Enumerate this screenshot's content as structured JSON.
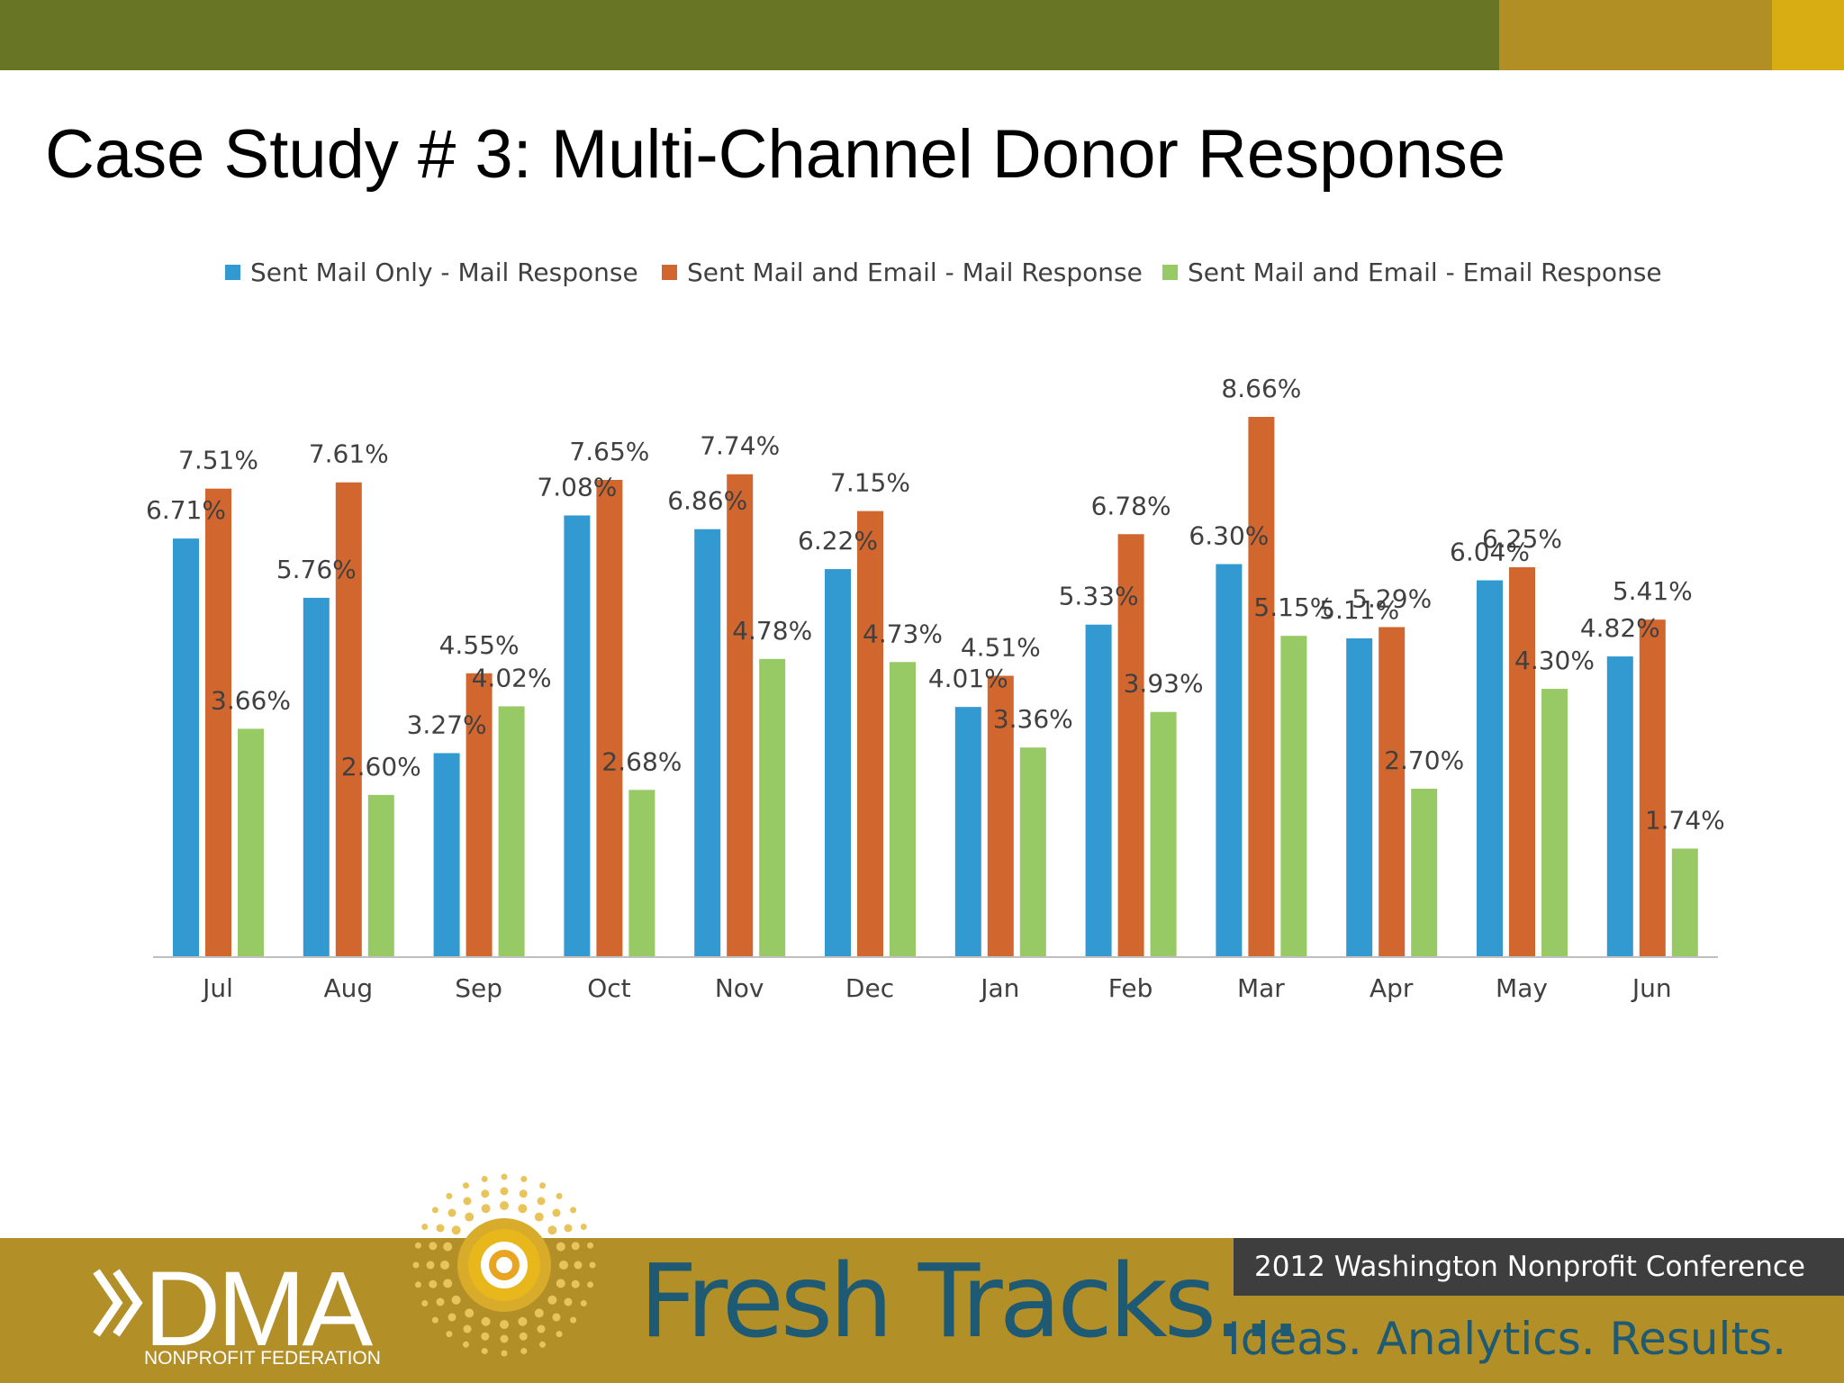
{
  "slide": {
    "title": "Case Study # 3: Multi-Channel Donor Response"
  },
  "colors": {
    "topbar_green": "#677524",
    "topbar_gold": "#b28f25",
    "topbar_yellow": "#d8ac13",
    "footer_gold": "#b38f28",
    "footer_dark": "#3e3e3e",
    "brand_teal": "#1e5a73"
  },
  "chart_data": {
    "type": "bar",
    "categories": [
      "Jul",
      "Aug",
      "Sep",
      "Oct",
      "Nov",
      "Dec",
      "Jan",
      "Feb",
      "Mar",
      "Apr",
      "May",
      "Jun"
    ],
    "series": [
      {
        "name": "Sent Mail Only - Mail Response",
        "color": "#3399d1",
        "values": [
          6.71,
          5.76,
          3.27,
          7.08,
          6.86,
          6.22,
          4.01,
          5.33,
          6.3,
          5.11,
          6.04,
          4.82
        ],
        "labels": [
          "6.71%",
          "5.76%",
          "3.27%",
          "7.08%",
          "6.86%",
          "6.22%",
          "4.01%",
          "5.33%",
          "6.30%",
          "5.11%",
          "6.04%",
          "4.82%"
        ]
      },
      {
        "name": "Sent Mail and Email - Mail Response",
        "color": "#d2662f",
        "values": [
          7.51,
          7.61,
          4.55,
          7.65,
          7.74,
          7.15,
          4.51,
          6.78,
          8.66,
          5.29,
          6.25,
          5.41
        ],
        "labels": [
          "7.51%",
          "7.61%",
          "4.55%",
          "7.65%",
          "7.74%",
          "7.15%",
          "4.51%",
          "6.78%",
          "8.66%",
          "5.29%",
          "6.25%",
          "5.41%"
        ]
      },
      {
        "name": "Sent Mail and Email - Email Response",
        "color": "#97c965",
        "values": [
          3.66,
          2.6,
          4.02,
          2.68,
          4.78,
          4.73,
          3.36,
          3.93,
          5.15,
          2.7,
          4.3,
          1.74
        ],
        "labels": [
          "3.66%",
          "2.60%",
          "4.02%",
          "2.68%",
          "4.78%",
          "4.73%",
          "3.36%",
          "3.93%",
          "5.15%",
          "2.70%",
          "4.30%",
          "1.74%"
        ]
      }
    ],
    "legend_position": "top",
    "grid": false
  },
  "footer": {
    "conference": "2012 Washington Nonprofit Conference",
    "logo_main": "DMA",
    "logo_sub": "NONPROFIT FEDERATION",
    "headline": "Fresh Tracks...",
    "tagline": "Ideas. Analytics. Results."
  }
}
